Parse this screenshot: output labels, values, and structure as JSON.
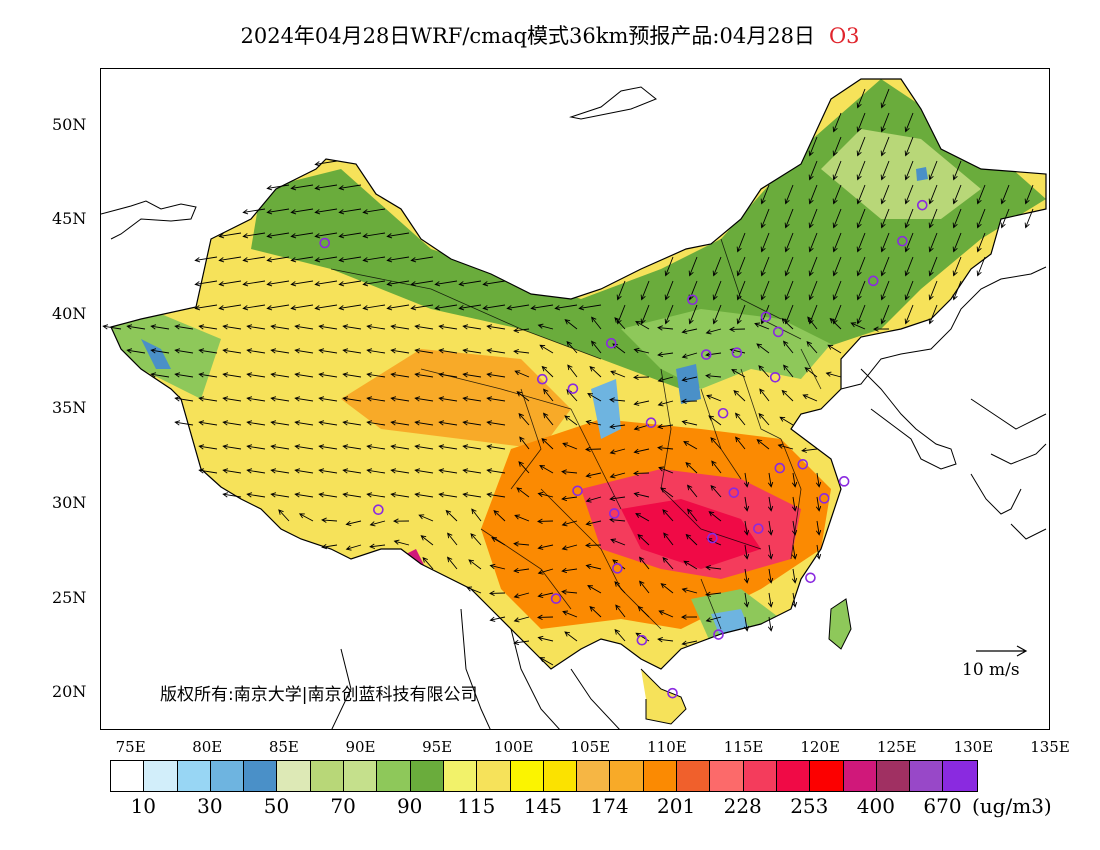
{
  "title": {
    "main": "2024年04月28日WRF/cmaq模式36km预报产品:04月28日",
    "species": "O3"
  },
  "axes": {
    "lat_ticks": [
      "50N",
      "45N",
      "40N",
      "35N",
      "30N",
      "25N",
      "20N"
    ],
    "lon_ticks": [
      "75E",
      "80E",
      "85E",
      "90E",
      "95E",
      "100E",
      "105E",
      "110E",
      "115E",
      "120E",
      "125E",
      "130E",
      "135E"
    ],
    "lat_range": [
      18,
      53
    ],
    "lon_range": [
      73,
      135
    ]
  },
  "copyright": "版权所有:南京大学|南京创蓝科技有限公司",
  "wind_reference": "10 m/s",
  "colorbar": {
    "colors": [
      "#ffffff",
      "#d2eefa",
      "#98d6f4",
      "#6eb4e0",
      "#4a90c8",
      "#dde9b6",
      "#b8d778",
      "#c5e08c",
      "#8ec85a",
      "#6aac3c",
      "#f2f26a",
      "#f6e25a",
      "#fbf400",
      "#fbe200",
      "#f6b644",
      "#f8aa28",
      "#fb8a02",
      "#f0602c",
      "#fc6a6a",
      "#f43c5c",
      "#f00a46",
      "#fc0000",
      "#d0187a",
      "#a03062",
      "#9848c8",
      "#8a2ae0"
    ],
    "labels": [
      "10",
      "30",
      "50",
      "70",
      "90",
      "115",
      "145",
      "174",
      "201",
      "228",
      "253",
      "400",
      "670"
    ],
    "units": "(ug/m3)"
  },
  "stations": [
    {
      "lon": 87.6,
      "lat": 43.8
    },
    {
      "lon": 91.1,
      "lat": 29.7
    },
    {
      "lon": 101.8,
      "lat": 36.6
    },
    {
      "lon": 103.8,
      "lat": 36.1
    },
    {
      "lon": 106.3,
      "lat": 38.5
    },
    {
      "lon": 108.9,
      "lat": 34.3
    },
    {
      "lon": 111.6,
      "lat": 40.8
    },
    {
      "lon": 112.5,
      "lat": 37.9
    },
    {
      "lon": 114.5,
      "lat": 38.0
    },
    {
      "lon": 116.4,
      "lat": 39.9
    },
    {
      "lon": 117.2,
      "lat": 39.1
    },
    {
      "lon": 113.6,
      "lat": 34.8
    },
    {
      "lon": 117.0,
      "lat": 36.7
    },
    {
      "lon": 104.1,
      "lat": 30.7
    },
    {
      "lon": 106.5,
      "lat": 29.5
    },
    {
      "lon": 114.3,
      "lat": 30.6
    },
    {
      "lon": 112.9,
      "lat": 28.2
    },
    {
      "lon": 115.9,
      "lat": 28.7
    },
    {
      "lon": 117.3,
      "lat": 31.9
    },
    {
      "lon": 118.8,
      "lat": 32.1
    },
    {
      "lon": 120.2,
      "lat": 30.3
    },
    {
      "lon": 121.5,
      "lat": 31.2
    },
    {
      "lon": 119.3,
      "lat": 26.1
    },
    {
      "lon": 113.3,
      "lat": 23.1
    },
    {
      "lon": 108.3,
      "lat": 22.8
    },
    {
      "lon": 110.3,
      "lat": 20.0
    },
    {
      "lon": 106.7,
      "lat": 26.6
    },
    {
      "lon": 102.7,
      "lat": 25.0
    },
    {
      "lon": 123.4,
      "lat": 41.8
    },
    {
      "lon": 125.3,
      "lat": 43.9
    },
    {
      "lon": 126.6,
      "lat": 45.8
    }
  ]
}
